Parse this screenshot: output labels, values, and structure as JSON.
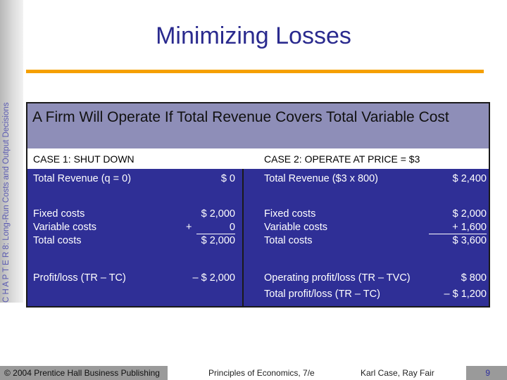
{
  "sidebar": {
    "text": "C H A P T E R 8: Long-Run Costs and Output Decisions"
  },
  "title": "Minimizing Losses",
  "panel": {
    "heading": "A Firm Will Operate If Total Revenue Covers Total Variable Cost",
    "case1": {
      "label": "CASE 1: SHUT DOWN",
      "revenue_label": "Total Revenue (q = 0)",
      "revenue_value": "$ 0",
      "fixed_label": "Fixed costs",
      "variable_label": "Variable costs",
      "total_label": "Total costs",
      "fixed_value": "$ 2,000",
      "variable_sign": "+",
      "variable_value": "0",
      "total_value": "$ 2,000",
      "profit_label": "Profit/loss (TR – TC)",
      "profit_value": "– $ 2,000"
    },
    "case2": {
      "label": "CASE 2: OPERATE AT PRICE = $3",
      "revenue_label": "Total Revenue ($3 x 800)",
      "revenue_value": "$ 2,400",
      "fixed_label": "Fixed costs",
      "variable_label": "Variable costs",
      "total_label": "Total costs",
      "fixed_value": "$ 2,000",
      "variable_value": "+ 1,600",
      "total_value": "$ 3,600",
      "op_label": "Operating profit/loss (TR – TVC)",
      "op_value": "$ 800",
      "total_profit_label": "Total profit/loss (TR – TC)",
      "total_profit_value": "– $ 1,200"
    }
  },
  "footer": {
    "copyright": "© 2004 Prentice Hall Business Publishing",
    "book": "Principles of Economics, 7/e",
    "authors": "Karl Case, Ray Fair",
    "page": "9"
  },
  "colors": {
    "accent": "#f5a000",
    "panel": "#2f2f96",
    "heading_band": "#8e8eb8",
    "title": "#2a2a8e"
  }
}
